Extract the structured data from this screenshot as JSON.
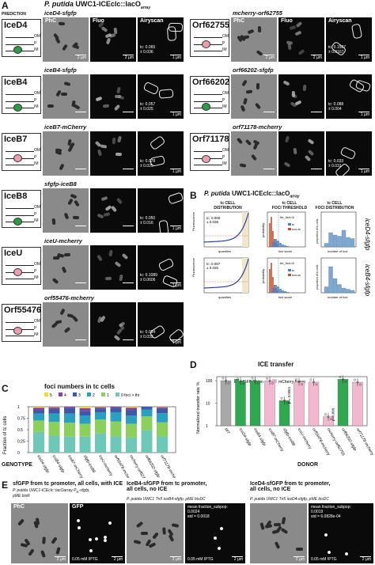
{
  "panelA": {
    "letter": "A",
    "prediction": "PREDICTION",
    "title_prefix": "P. putida",
    "title_main": " UWC1-ICEclc::lacO",
    "title_sub": "array",
    "col_phc": "PhC",
    "col_fluo": "Fluo",
    "col_airy": "Airyscan",
    "scale_2": "2 µm",
    "scale_1": "1 µm",
    "membrane": {
      "om": "OM",
      "p": "P",
      "im": "IM"
    },
    "left": [
      {
        "name": "IceD4",
        "geno": "iceD4-sfgfp",
        "tc": "tc: 0.065",
        "pm": "± 0.036",
        "color": "#2e9a4a"
      },
      {
        "name": "IceB4",
        "geno": "iceB4-sfgfp",
        "tc": "tc: 0.057",
        "pm": "± 0.025",
        "color": "#2e9a4a"
      },
      {
        "name": "IceB7",
        "geno": "iceB7-mCherry",
        "tc": "tc: 0.078",
        "pm": "± 0.025",
        "color": "#e8a0b0"
      },
      {
        "name": "IceB8",
        "geno": "sfgfp-iceB8",
        "tc": "tc: 0.050",
        "pm": "± 0.016",
        "color": "#2e9a4a"
      },
      {
        "name": "IceU",
        "geno": "iceU-mcherry",
        "tc": "tc: 0.1089",
        "pm": "± 0.0606",
        "color": "#e8a0b0"
      },
      {
        "name": "Orf55476",
        "geno": "orf55476-mcherry",
        "tc": "tc: 0.034",
        "pm": "± 0.032",
        "color": "#e8a0b0"
      }
    ],
    "right": [
      {
        "name": "Orf62755",
        "geno": "mcherry-orf62755",
        "tc": "tc: 0.1587",
        "pm": "± 0.0167",
        "color": "#e8a0b0"
      },
      {
        "name": "Orf66202",
        "geno": "orf66202-sfgfp",
        "tc": "tc: 0.088",
        "pm": "± 0.004",
        "color": "#2e9a4a"
      },
      {
        "name": "Orf71178",
        "geno": "orf71178-mcherry",
        "tc": "tc: 0.033",
        "pm": "± 0.031",
        "color": "#e8a0b0"
      }
    ]
  },
  "panelB": {
    "letter": "B",
    "title_prefix": "P. putida",
    "title_main": " UWC1-ICEclc::lacO",
    "title_sub": "array",
    "col1": [
      "tc CELL",
      "DISTRIBUTION"
    ],
    "col2": [
      "tc CELL",
      "FOCI THRESHOLD"
    ],
    "col3": [
      "tc CELL",
      "FOCI DISTRIBUTION"
    ],
    "ylab1": "Fluorescence",
    "xlab1": "quantiles",
    "ylab2": "probability",
    "xlab2": "foci score",
    "ylab3": "proportion of tc cells",
    "xlab3": "number of foci",
    "legend_tc": "tc",
    "legend_nontc": "non-tc",
    "rows": [
      {
        "gene": "iceD4-sfgfp",
        "tc": "tc: 0.065",
        "pm": "± 0.036",
        "thr": "thr_foci=6",
        "hist": [
          0.03,
          0.12,
          0.1,
          0.09,
          0.14,
          0.08,
          0.07
        ]
      },
      {
        "gene": "iceB4-sfgfp",
        "tc": "tc: 0.057",
        "pm": "± 0.025",
        "thr": "thr_foci=6",
        "hist": [
          0.05,
          0.22,
          0.12,
          0.07,
          0.04,
          0.03,
          0.02
        ]
      }
    ]
  },
  "panelC": {
    "letter": "C",
    "title": "foci numbers in tc cells",
    "ylabel": "Fraction of tc cells",
    "genotype": "GENOTYPE",
    "legend": [
      "5",
      "4",
      "3",
      "2",
      "1",
      "0 foci > thr"
    ],
    "colors": [
      "#f0e020",
      "#8b3fa0",
      "#3c5aa8",
      "#2aa0c0",
      "#8bd05a",
      "#6ec8b8"
    ],
    "yticks": [
      "0",
      "0.25",
      "0.5",
      "0.75",
      "1"
    ]
  },
  "chart_data": {
    "type": "bar",
    "title": "ICE transfer",
    "ylabel": "Normalized transfer rate %",
    "xlabel": "DONOR",
    "yscale": "log",
    "ylim": [
      1,
      150
    ],
    "yticks": [
      "1",
      "10",
      "100"
    ],
    "categories": [
      "WT",
      "iceD4-sfgfp",
      "iceB4-sfgfp",
      "iceB7-mCherry",
      "sfgfp-iceB8",
      "iceU-mcherry",
      "orf55476-mcherry",
      "mcherry-orf62755",
      "orf66202-sfgfp",
      "orf71178-mcherry"
    ],
    "values": [
      100,
      95,
      100,
      98,
      13,
      88,
      86,
      2.5,
      115,
      85
    ],
    "fusion": [
      "wt",
      "sfgfp",
      "sfgfp",
      "mcherry",
      "sfgfp",
      "mcherry",
      "mcherry",
      "mcherry",
      "sfgfp",
      "mcherry"
    ],
    "legend": [
      "sfGFP fusion",
      "mCherry fusion"
    ],
    "annotations": [
      "p = 0.0001",
      "p=0.009"
    ]
  },
  "panelD": {
    "letter": "D"
  },
  "panelE": {
    "letter": "E",
    "p1_title": [
      "sfGFP from tc promoter, all cells, with ICE"
    ],
    "p1_sub": [
      "P. putida UWC1-ICEclc::lacOarray P",
      "tc",
      "-sfgfp,",
      "pME bisR"
    ],
    "p2_title": [
      "IceB4-sfGFP from tc promoter,",
      "all cells, no ICE"
    ],
    "p2_sub": "P. putida UWC1 Tn5 iceB4-sfgfp, pME bisDC",
    "p3_title": [
      "IceD4-sfGFP from tc promoter,",
      "all cells, no ICE"
    ],
    "p3_sub": "P. putida UWC1 Tn5 iceD4-sfgfp, pME bisDC",
    "phc": "PhC",
    "gfp": "GFP",
    "iptg": "0.05 mM IPTG",
    "scale": "2 µm",
    "m2": [
      "mean fraction_subpop:",
      "0.0024",
      "std = 0.0018"
    ],
    "m3": [
      "mean fraction_subpop:",
      "0.0019",
      "std = 6.0828e-04"
    ]
  }
}
